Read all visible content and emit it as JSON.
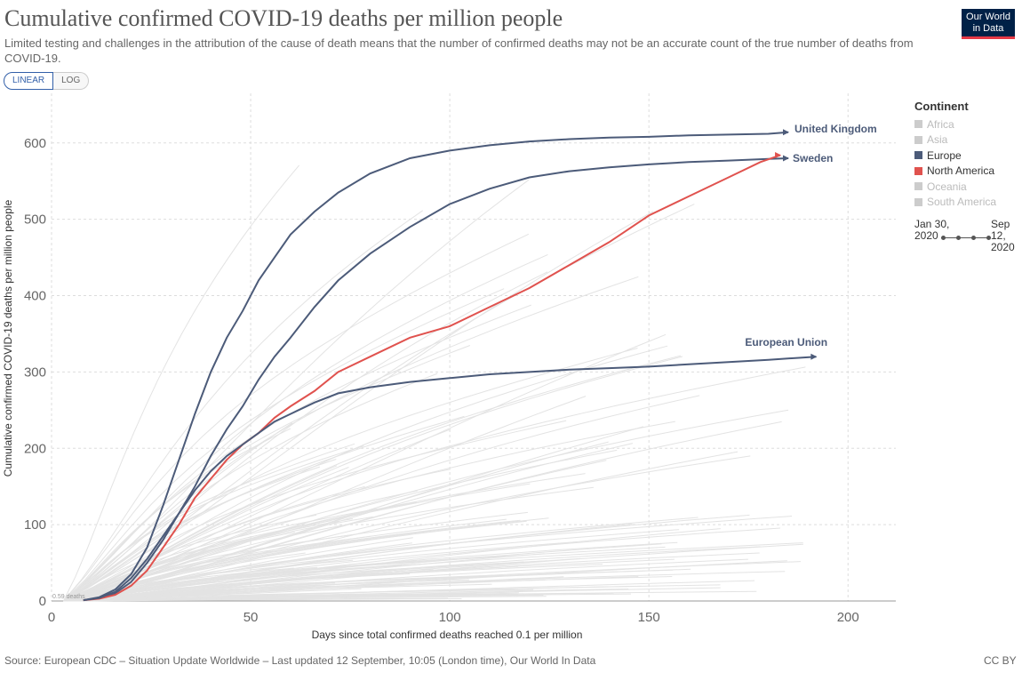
{
  "header": {
    "title": "Cumulative confirmed COVID-19 deaths per million people",
    "subtitle": "Limited testing and challenges in the attribution of the cause of death means that the number of confirmed deaths may not be an accurate count of the true number of deaths from COVID-19.",
    "logo_line1": "Our World",
    "logo_line2": "in Data"
  },
  "scale_toggle": {
    "linear": "LINEAR",
    "log": "LOG",
    "selected": "LINEAR"
  },
  "legend": {
    "title": "Continent",
    "items": [
      {
        "label": "Africa",
        "color": "#cccccc",
        "active": false
      },
      {
        "label": "Asia",
        "color": "#cccccc",
        "active": false
      },
      {
        "label": "Europe",
        "color": "#4c5b79",
        "active": true
      },
      {
        "label": "North America",
        "color": "#e0524e",
        "active": true
      },
      {
        "label": "Oceania",
        "color": "#cccccc",
        "active": false
      },
      {
        "label": "South America",
        "color": "#cccccc",
        "active": false
      }
    ]
  },
  "timeline": {
    "start": "Jan 30, 2020",
    "end": "Sep 12, 2020"
  },
  "footer": {
    "source": "Source: European CDC – Situation Update Worldwide – Last updated 12 September, 10:05 (London time), Our World In Data",
    "license": "CC BY"
  },
  "chart_data": {
    "type": "line",
    "xlabel": "Days since total confirmed deaths reached 0.1 per million",
    "ylabel": "Cumulative confirmed COVID-19 deaths per million people",
    "xlim": [
      0,
      212
    ],
    "ylim": [
      0,
      665
    ],
    "x_ticks": [
      0,
      50,
      100,
      150,
      200
    ],
    "y_ticks": [
      0,
      100,
      200,
      300,
      400,
      500,
      600
    ],
    "grid": true,
    "start_marker_label": "0.59 deaths",
    "series": [
      {
        "name": "United Kingdom",
        "color": "#4c5b79",
        "x": [
          8,
          12,
          16,
          20,
          24,
          28,
          32,
          36,
          40,
          44,
          48,
          52,
          56,
          60,
          66,
          72,
          80,
          90,
          100,
          110,
          120,
          130,
          140,
          150,
          160,
          170,
          180,
          185
        ],
        "y": [
          1,
          5,
          15,
          35,
          70,
          125,
          185,
          245,
          300,
          345,
          380,
          420,
          450,
          480,
          510,
          535,
          560,
          580,
          590,
          597,
          602,
          605,
          607,
          608,
          610,
          611,
          612,
          614
        ]
      },
      {
        "name": "Sweden",
        "color": "#4c5b79",
        "x": [
          8,
          12,
          16,
          20,
          24,
          28,
          32,
          36,
          40,
          44,
          48,
          52,
          56,
          60,
          66,
          72,
          80,
          90,
          100,
          110,
          120,
          130,
          140,
          150,
          160,
          170,
          180,
          185
        ],
        "y": [
          1,
          4,
          10,
          25,
          50,
          80,
          115,
          150,
          190,
          225,
          255,
          290,
          320,
          345,
          385,
          420,
          455,
          490,
          520,
          540,
          555,
          563,
          568,
          572,
          575,
          577,
          579,
          580
        ]
      },
      {
        "name": "North America",
        "color": "#e0524e",
        "x": [
          8,
          12,
          16,
          20,
          24,
          28,
          32,
          36,
          40,
          44,
          48,
          52,
          56,
          60,
          66,
          72,
          80,
          90,
          100,
          110,
          120,
          130,
          140,
          150,
          160,
          170,
          178,
          183
        ],
        "y": [
          1,
          3,
          8,
          20,
          40,
          70,
          100,
          135,
          160,
          185,
          205,
          220,
          240,
          255,
          275,
          300,
          320,
          345,
          360,
          385,
          410,
          440,
          470,
          505,
          530,
          555,
          575,
          584
        ]
      },
      {
        "name": "European Union",
        "color": "#4c5b79",
        "x": [
          8,
          12,
          16,
          20,
          24,
          28,
          32,
          36,
          40,
          44,
          48,
          52,
          56,
          60,
          66,
          72,
          80,
          90,
          100,
          110,
          120,
          130,
          140,
          150,
          160,
          170,
          180,
          192
        ],
        "y": [
          1,
          4,
          12,
          30,
          55,
          85,
          115,
          145,
          170,
          190,
          205,
          220,
          235,
          245,
          260,
          272,
          280,
          287,
          292,
          297,
          300,
          303,
          305,
          307,
          310,
          313,
          316,
          320
        ]
      }
    ]
  }
}
